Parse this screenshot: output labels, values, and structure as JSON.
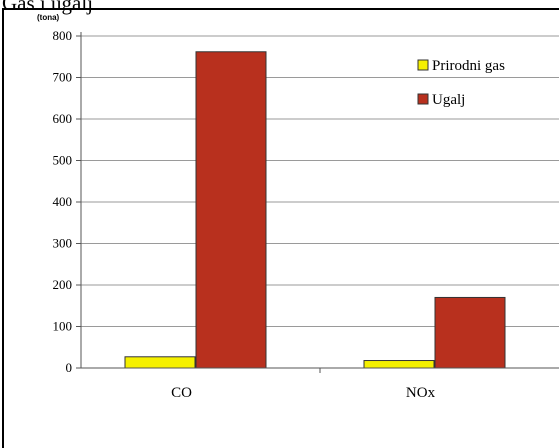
{
  "page": {
    "top_caption": "Gas i ugalj"
  },
  "chart_data": {
    "type": "bar",
    "ylabel": "(tona)",
    "xlabel": "",
    "title": "",
    "categories": [
      "CO",
      "NOx"
    ],
    "series": [
      {
        "name": "Prirodni gas",
        "values": [
          27,
          18
        ],
        "color": "#f5f000"
      },
      {
        "name": "Ugalj",
        "values": [
          762,
          170
        ],
        "color": "#b8301e"
      }
    ],
    "ylim": [
      0,
      800
    ],
    "yticks": [
      0,
      100,
      200,
      300,
      400,
      500,
      600,
      700,
      800
    ],
    "grid": true,
    "legend_position": "top-right"
  }
}
